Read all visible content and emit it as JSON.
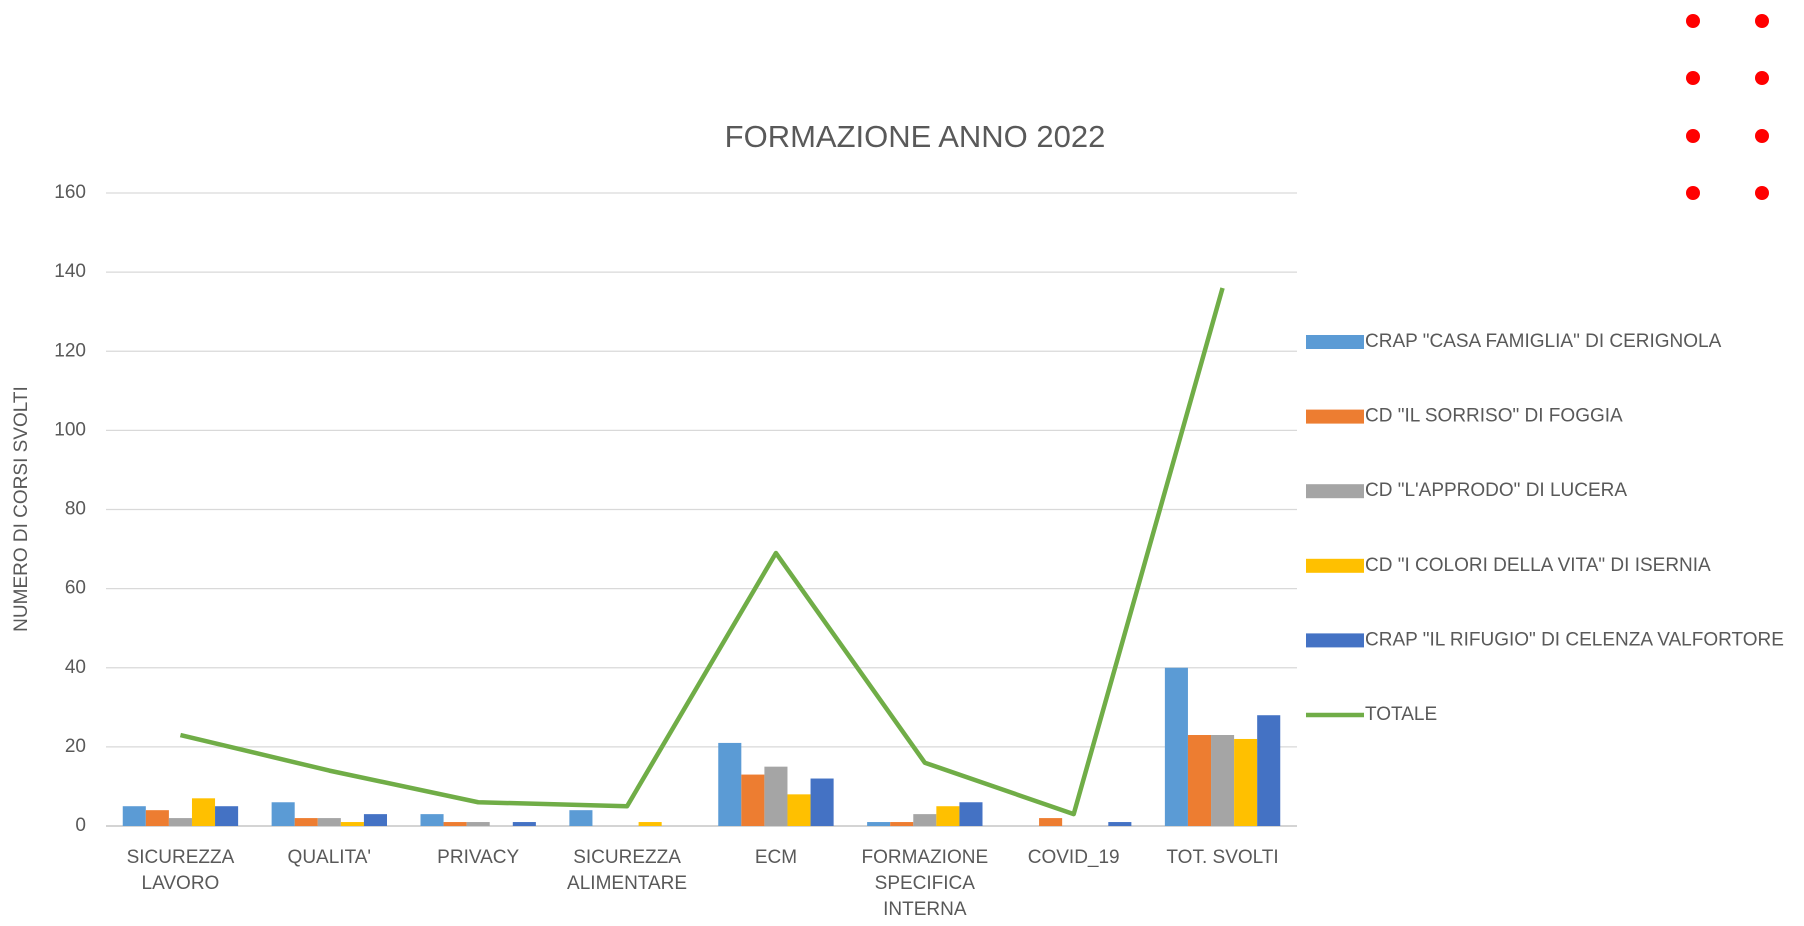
{
  "chart_data": {
    "type": "bar",
    "title": "FORMAZIONE ANNO 2022",
    "y_label": "NUMERO DI CORSI SVOLTI",
    "categories": [
      "SICUREZZA LAVORO",
      "QUALITA'",
      "PRIVACY",
      "SICUREZZA ALIMENTARE",
      "ECM",
      "FORMAZIONE SPECIFICA INTERNA",
      "COVID_19",
      "TOT. SVOLTI"
    ],
    "series": [
      {
        "name": "CRAP \"CASA FAMIGLIA\" DI CERIGNOLA",
        "color": "#5b9bd5",
        "values": [
          5,
          6,
          3,
          4,
          21,
          1,
          0,
          40
        ]
      },
      {
        "name": "CD \"IL SORRISO\" DI FOGGIA",
        "color": "#ed7d31",
        "values": [
          4,
          2,
          1,
          0,
          13,
          1,
          2,
          23
        ]
      },
      {
        "name": "CD \"L'APPRODO\" DI LUCERA",
        "color": "#a5a5a5",
        "values": [
          2,
          2,
          1,
          0,
          15,
          3,
          0,
          23
        ]
      },
      {
        "name": "CD \"I COLORI DELLA VITA\" DI ISERNIA",
        "color": "#ffc000",
        "values": [
          7,
          1,
          0,
          1,
          8,
          5,
          0,
          22
        ]
      },
      {
        "name": "CRAP \"IL RIFUGIO\" DI CELENZA VALFORTORE",
        "color": "#4472c4",
        "values": [
          5,
          3,
          1,
          0,
          12,
          6,
          1,
          28
        ]
      },
      {
        "name": "TOTALE",
        "color": "#70ad47",
        "type": "line",
        "values": [
          23,
          14,
          6,
          5,
          69,
          16,
          3,
          136
        ]
      }
    ],
    "ylim": [
      0,
      160
    ],
    "yticks": [
      0,
      20,
      40,
      60,
      80,
      100,
      120,
      140,
      160
    ],
    "grid": true,
    "legend": "right"
  }
}
